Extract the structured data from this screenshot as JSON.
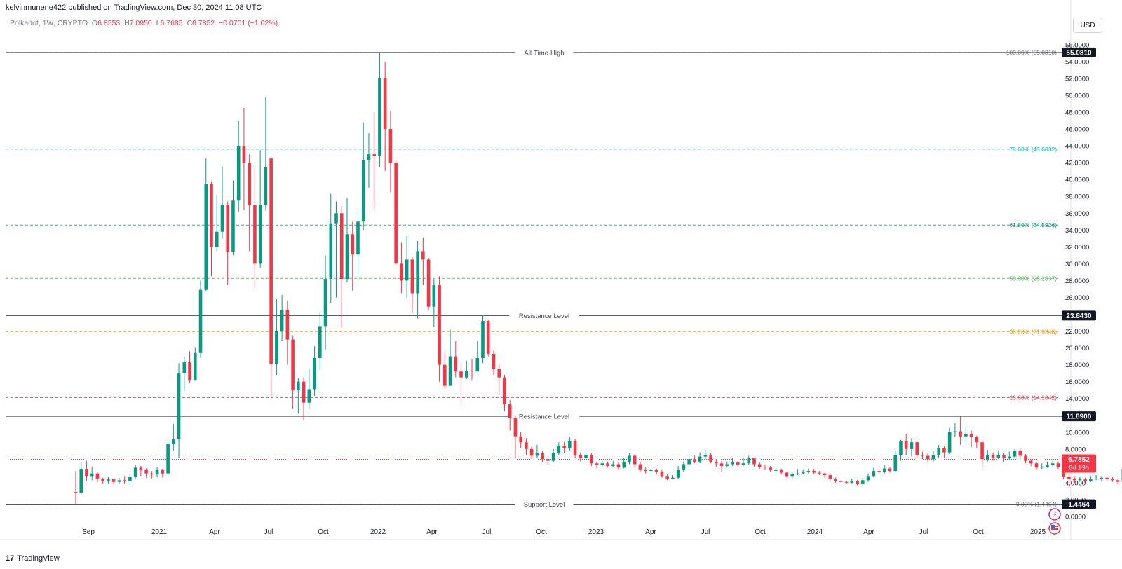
{
  "header": {
    "published": "kelvinmunene422 published on TradingView.com, Dec 30, 2024 11:08 UTC"
  },
  "legend": {
    "symbol": "Polkadot, 1W, CRYPTO",
    "open_label": "O",
    "open": "6.8553",
    "high_label": "H",
    "high": "7.0950",
    "low_label": "L",
    "low": "6.7685",
    "close_label": "C",
    "close": "6.7852",
    "change": "−0.0701 (−1.02%)"
  },
  "currency_button": "USD",
  "footer": {
    "brand": "TradingView",
    "logo_text": "17"
  },
  "chart_data": {
    "type": "candlestick",
    "title": "",
    "ylim": [
      0,
      56
    ],
    "y_ticks": [
      "56.0000",
      "54.0000",
      "52.0000",
      "50.0000",
      "48.0000",
      "46.0000",
      "44.0000",
      "42.0000",
      "40.0000",
      "38.0000",
      "36.0000",
      "34.0000",
      "32.0000",
      "30.0000",
      "28.0000",
      "26.0000",
      "24.0000",
      "22.0000",
      "20.0000",
      "18.0000",
      "16.0000",
      "14.0000",
      "12.0000",
      "10.0000",
      "8.0000",
      "6.0000",
      "4.0000",
      "2.0000",
      "0.0000"
    ],
    "x_ticks": [
      "Sep",
      "2021",
      "Apr",
      "Jul",
      "Oct",
      "2022",
      "Apr",
      "Jul",
      "Oct",
      "2023",
      "Apr",
      "Jul",
      "Oct",
      "2024",
      "Apr",
      "Jul",
      "Oct",
      "2025"
    ],
    "grid": false,
    "horizontal_levels": [
      {
        "label": "All-Time-High",
        "value": 55.081,
        "badge": "55.0810"
      },
      {
        "label": "Resistance Level",
        "value": 23.843,
        "badge": "23.8430"
      },
      {
        "label": "Resistance Level",
        "value": 11.89,
        "badge": "11.8900"
      },
      {
        "label": "Support Level",
        "value": 1.4464,
        "badge": "1.4464"
      }
    ],
    "fib_levels": [
      {
        "label": "100.00% (55.0810)",
        "value": 55.081,
        "color": "#787b86"
      },
      {
        "label": "78.60% (43.6032)",
        "value": 43.6032,
        "color": "#00bcd4"
      },
      {
        "label": "61.80% (34.5926)",
        "value": 34.5926,
        "color": "#089981"
      },
      {
        "label": "50.00% (28.2637)",
        "value": 28.2637,
        "color": "#4caf50"
      },
      {
        "label": "38.20% (21.9348)",
        "value": 21.9348,
        "color": "#ff9800"
      },
      {
        "label": "23.60% (14.1042)",
        "value": 14.1042,
        "color": "#f23645"
      },
      {
        "label": "0.00% (1.4464)",
        "value": 1.4464,
        "color": "#787b86"
      }
    ],
    "current_price": {
      "value": 6.7852,
      "label": "6.7852",
      "countdown": "6d 13h"
    },
    "colors": {
      "up": "#089981",
      "down": "#f23645"
    },
    "candles": [
      [
        2.9,
        2.8,
        5.4,
        1.5
      ],
      [
        2.8,
        5.6,
        6.5,
        2.6
      ],
      [
        5.6,
        4.8,
        6.6,
        4.2
      ],
      [
        4.8,
        5.1,
        5.9,
        4.3
      ],
      [
        5.1,
        4.5,
        5.3,
        4.1
      ],
      [
        4.5,
        4.2,
        4.6,
        3.9
      ],
      [
        4.2,
        4.4,
        4.7,
        3.9
      ],
      [
        4.4,
        4.1,
        4.5,
        3.8
      ],
      [
        4.1,
        4.3,
        4.6,
        3.9
      ],
      [
        4.3,
        4.2,
        4.8,
        3.9
      ],
      [
        4.2,
        4.7,
        5.3,
        4.0
      ],
      [
        4.7,
        5.8,
        6.1,
        4.5
      ],
      [
        5.8,
        5.5,
        6.0,
        4.8
      ],
      [
        5.5,
        5.1,
        5.7,
        4.6
      ],
      [
        5.1,
        5.0,
        5.4,
        4.5
      ],
      [
        5.0,
        5.5,
        5.9,
        4.7
      ],
      [
        5.5,
        5.1,
        5.6,
        4.6
      ],
      [
        5.1,
        8.6,
        9.3,
        5.0
      ],
      [
        8.6,
        9.2,
        11.0,
        7.8
      ],
      [
        9.2,
        17.0,
        18.2,
        6.9
      ],
      [
        17.0,
        18.3,
        19.0,
        14.9
      ],
      [
        18.3,
        16.2,
        19.6,
        15.8
      ],
      [
        16.2,
        19.4,
        20.1,
        16.3
      ],
      [
        19.4,
        26.9,
        28.0,
        18.8
      ],
      [
        26.9,
        39.5,
        42.5,
        26.8
      ],
      [
        39.5,
        32.0,
        39.7,
        28.5
      ],
      [
        32.0,
        33.8,
        38.2,
        31.5
      ],
      [
        33.8,
        37.0,
        41.5,
        33.0
      ],
      [
        37.0,
        31.4,
        37.4,
        27.5
      ],
      [
        31.4,
        37.5,
        39.9,
        31.0
      ],
      [
        37.5,
        44.0,
        47.0,
        36.2
      ],
      [
        44.0,
        42.0,
        48.5,
        36.4
      ],
      [
        42.0,
        37.0,
        43.0,
        31.5
      ],
      [
        37.0,
        30.0,
        41.5,
        27.0
      ],
      [
        30.0,
        37.0,
        43.5,
        29.5
      ],
      [
        37.0,
        41.5,
        49.8,
        36.3
      ],
      [
        42.5,
        18.1,
        42.7,
        14.1
      ],
      [
        18.1,
        22.0,
        25.8,
        16.8
      ],
      [
        22.0,
        24.5,
        26.3,
        20.8
      ],
      [
        24.5,
        21.0,
        25.6,
        18.0
      ],
      [
        21.0,
        15.0,
        21.5,
        12.8
      ],
      [
        15.0,
        16.0,
        16.4,
        12.2
      ],
      [
        16.0,
        13.5,
        16.5,
        11.4
      ],
      [
        13.5,
        15.1,
        17.5,
        12.8
      ],
      [
        15.1,
        18.8,
        20.2,
        14.3
      ],
      [
        18.8,
        22.6,
        24.3,
        17.4
      ],
      [
        22.6,
        28.2,
        31.0,
        19.8
      ],
      [
        28.2,
        34.8,
        38.3,
        25.3
      ],
      [
        34.8,
        36.0,
        37.4,
        26.0
      ],
      [
        36.0,
        28.2,
        36.9,
        22.4
      ],
      [
        28.2,
        33.5,
        37.8,
        27.8
      ],
      [
        33.5,
        31.1,
        35.0,
        26.8
      ],
      [
        31.1,
        35.0,
        36.3,
        28.0
      ],
      [
        35.0,
        42.3,
        46.8,
        34.0
      ],
      [
        42.3,
        43.0,
        45.5,
        39.0
      ],
      [
        43.0,
        42.8,
        48.0,
        36.5
      ],
      [
        42.8,
        52.0,
        55.1,
        41.5
      ],
      [
        52.0,
        46.0,
        54.0,
        41.0
      ],
      [
        46.0,
        42.0,
        48.1,
        38.5
      ],
      [
        42.0,
        30.0,
        42.3,
        30.2
      ],
      [
        30.0,
        28.0,
        32.5,
        26.5
      ],
      [
        28.0,
        30.5,
        33.3,
        26.0
      ],
      [
        30.5,
        26.5,
        30.8,
        24.2
      ],
      [
        26.5,
        31.5,
        32.7,
        23.5
      ],
      [
        31.5,
        30.5,
        33.1,
        27.5
      ],
      [
        30.5,
        24.9,
        30.7,
        24.5
      ],
      [
        24.9,
        27.5,
        28.2,
        22.5
      ],
      [
        27.5,
        18.0,
        28.5,
        16.0
      ],
      [
        18.0,
        15.5,
        19.5,
        15.2
      ],
      [
        15.5,
        19.0,
        22.2,
        17.5
      ],
      [
        19.0,
        17.2,
        20.8,
        16.5
      ],
      [
        17.2,
        16.5,
        18.2,
        13.3
      ],
      [
        16.5,
        17.3,
        18.5,
        16.3
      ],
      [
        17.3,
        17.2,
        18.7,
        16.2
      ],
      [
        17.2,
        18.8,
        20.8,
        17.4
      ],
      [
        18.8,
        23.2,
        23.9,
        18.2
      ],
      [
        23.2,
        19.3,
        23.4,
        19.0
      ],
      [
        19.3,
        17.5,
        19.7,
        16.8
      ],
      [
        17.5,
        16.5,
        18.1,
        14.5
      ],
      [
        16.5,
        13.3,
        16.8,
        12.5
      ],
      [
        13.3,
        11.7,
        13.8,
        10.2
      ],
      [
        11.7,
        9.5,
        11.9,
        6.9
      ],
      [
        9.5,
        8.8,
        10.0,
        8.1
      ],
      [
        8.8,
        8.0,
        9.3,
        7.3
      ],
      [
        8.0,
        7.2,
        8.3,
        6.8
      ],
      [
        7.2,
        7.5,
        8.5,
        6.9
      ],
      [
        7.5,
        6.8,
        7.8,
        6.4
      ],
      [
        6.8,
        6.6,
        7.0,
        6.1
      ],
      [
        6.6,
        7.5,
        8.0,
        6.4
      ],
      [
        7.5,
        8.4,
        8.8,
        7.3
      ],
      [
        8.4,
        8.1,
        8.8,
        7.5
      ],
      [
        8.1,
        8.9,
        9.4,
        7.8
      ],
      [
        8.9,
        7.3,
        9.2,
        6.9
      ],
      [
        7.3,
        6.9,
        7.6,
        6.5
      ],
      [
        6.9,
        7.3,
        7.8,
        6.6
      ],
      [
        7.3,
        6.3,
        7.5,
        6.0
      ],
      [
        6.3,
        6.1,
        6.5,
        5.7
      ],
      [
        6.1,
        6.3,
        6.6,
        5.9
      ],
      [
        6.3,
        6.0,
        6.5,
        5.8
      ],
      [
        6.0,
        6.2,
        6.6,
        5.9
      ],
      [
        6.2,
        5.8,
        6.4,
        5.5
      ],
      [
        5.8,
        6.5,
        6.9,
        5.7
      ],
      [
        6.5,
        7.2,
        7.5,
        6.2
      ],
      [
        7.2,
        6.2,
        7.4,
        5.9
      ],
      [
        6.2,
        5.5,
        6.4,
        5.3
      ],
      [
        5.5,
        5.4,
        5.9,
        5.1
      ],
      [
        5.4,
        5.5,
        5.8,
        5.2
      ],
      [
        5.5,
        5.3,
        5.7,
        5.0
      ],
      [
        5.3,
        4.8,
        5.5,
        4.6
      ],
      [
        4.8,
        4.5,
        5.0,
        4.3
      ],
      [
        4.5,
        4.6,
        4.9,
        4.4
      ],
      [
        4.6,
        5.5,
        6.0,
        4.5
      ],
      [
        5.5,
        6.2,
        6.5,
        5.3
      ],
      [
        6.2,
        6.8,
        7.2,
        6.0
      ],
      [
        6.8,
        6.5,
        7.3,
        6.3
      ],
      [
        6.5,
        7.1,
        7.6,
        6.3
      ],
      [
        7.1,
        7.3,
        7.9,
        6.8
      ],
      [
        7.3,
        6.5,
        7.5,
        6.3
      ],
      [
        6.5,
        6.3,
        6.8,
        5.9
      ],
      [
        6.3,
        6.0,
        6.6,
        5.3
      ],
      [
        6.0,
        6.2,
        6.5,
        5.8
      ],
      [
        6.2,
        6.4,
        6.9,
        6.0
      ],
      [
        6.4,
        6.1,
        6.6,
        5.9
      ],
      [
        6.1,
        6.3,
        6.9,
        6.0
      ],
      [
        6.3,
        6.9,
        7.2,
        6.1
      ],
      [
        6.9,
        6.2,
        7.0,
        5.9
      ],
      [
        6.2,
        5.9,
        6.4,
        5.6
      ],
      [
        5.9,
        5.8,
        6.1,
        5.5
      ],
      [
        5.8,
        5.5,
        6.0,
        5.3
      ],
      [
        5.5,
        5.5,
        5.8,
        5.2
      ],
      [
        5.5,
        5.2,
        5.6,
        5.0
      ],
      [
        5.2,
        4.8,
        5.3,
        4.6
      ],
      [
        4.8,
        5.0,
        5.3,
        4.4
      ],
      [
        5.0,
        5.1,
        5.6,
        4.9
      ],
      [
        5.1,
        5.3,
        5.5,
        5.0
      ],
      [
        5.3,
        5.4,
        5.7,
        5.1
      ],
      [
        5.4,
        5.2,
        5.6,
        5.0
      ],
      [
        5.2,
        5.1,
        5.4,
        4.9
      ],
      [
        5.1,
        4.9,
        5.2,
        4.6
      ],
      [
        4.9,
        4.5,
        5.0,
        4.3
      ],
      [
        4.5,
        4.2,
        4.6,
        4.0
      ],
      [
        4.2,
        4.1,
        4.3,
        3.9
      ],
      [
        4.1,
        4.0,
        4.2,
        3.9
      ],
      [
        4.0,
        4.2,
        4.5,
        3.9
      ],
      [
        4.2,
        3.9,
        4.3,
        3.7
      ],
      [
        3.9,
        4.3,
        4.6,
        3.6
      ],
      [
        4.3,
        4.8,
        5.1,
        4.1
      ],
      [
        4.8,
        5.4,
        5.8,
        4.7
      ],
      [
        5.4,
        5.3,
        6.0,
        5.0
      ],
      [
        5.3,
        5.7,
        6.1,
        5.1
      ],
      [
        5.7,
        5.4,
        5.9,
        5.2
      ],
      [
        5.4,
        7.3,
        7.8,
        5.3
      ],
      [
        7.3,
        8.9,
        9.1,
        6.6
      ],
      [
        8.9,
        8.0,
        9.8,
        7.3
      ],
      [
        8.0,
        8.8,
        9.3,
        7.1
      ],
      [
        8.8,
        7.3,
        9.0,
        6.9
      ],
      [
        7.3,
        7.2,
        7.7,
        6.8
      ],
      [
        7.2,
        6.8,
        7.6,
        6.5
      ],
      [
        6.8,
        7.3,
        7.8,
        6.5
      ],
      [
        7.3,
        8.1,
        8.5,
        6.9
      ],
      [
        8.1,
        7.6,
        8.3,
        7.0
      ],
      [
        7.6,
        10.0,
        10.5,
        7.4
      ],
      [
        10.0,
        10.1,
        11.1,
        9.4
      ],
      [
        10.1,
        9.5,
        11.9,
        8.5
      ],
      [
        9.5,
        9.8,
        10.6,
        8.6
      ],
      [
        9.8,
        9.4,
        10.2,
        8.2
      ],
      [
        9.4,
        8.8,
        9.6,
        8.1
      ],
      [
        8.8,
        6.8,
        9.1,
        5.9
      ],
      [
        6.8,
        7.3,
        7.9,
        6.5
      ],
      [
        7.3,
        7.0,
        7.6,
        6.6
      ],
      [
        7.0,
        7.3,
        7.8,
        6.8
      ],
      [
        7.3,
        6.9,
        7.5,
        6.5
      ],
      [
        6.9,
        7.1,
        7.7,
        6.7
      ],
      [
        7.1,
        7.8,
        8.0,
        6.9
      ],
      [
        7.8,
        7.2,
        8.1,
        6.8
      ],
      [
        7.2,
        6.6,
        7.4,
        6.3
      ],
      [
        6.6,
        6.3,
        6.8,
        6.0
      ],
      [
        6.3,
        5.8,
        6.5,
        5.5
      ],
      [
        5.8,
        5.9,
        6.3,
        5.6
      ],
      [
        5.9,
        6.1,
        6.5,
        5.8
      ],
      [
        6.1,
        6.3,
        6.6,
        5.9
      ],
      [
        6.3,
        5.9,
        6.5,
        5.6
      ],
      [
        5.9,
        4.7,
        6.0,
        4.4
      ],
      [
        4.7,
        4.5,
        5.0,
        3.6
      ],
      [
        4.5,
        4.3,
        4.8,
        4.0
      ],
      [
        4.3,
        4.4,
        4.7,
        4.1
      ],
      [
        4.4,
        4.2,
        4.6,
        4.0
      ],
      [
        4.2,
        4.4,
        4.8,
        4.1
      ],
      [
        4.4,
        4.5,
        4.9,
        4.3
      ],
      [
        4.5,
        4.6,
        4.8,
        4.2
      ],
      [
        4.6,
        4.4,
        4.8,
        4.2
      ],
      [
        4.4,
        4.3,
        4.7,
        4.1
      ],
      [
        4.3,
        4.1,
        4.4,
        3.8
      ],
      [
        4.1,
        5.6,
        5.9,
        4.0
      ],
      [
        5.6,
        6.9,
        7.2,
        5.5
      ],
      [
        6.9,
        10.5,
        10.9,
        6.7
      ],
      [
        10.5,
        10.0,
        11.2,
        9.0
      ],
      [
        10.0,
        9.6,
        11.6,
        8.9
      ],
      [
        9.6,
        7.9,
        9.8,
        7.1
      ],
      [
        7.9,
        6.8,
        8.1,
        5.8
      ],
      [
        6.8,
        6.8,
        7.3,
        6.4
      ],
      [
        6.8,
        6.79,
        7.1,
        6.77
      ]
    ]
  }
}
